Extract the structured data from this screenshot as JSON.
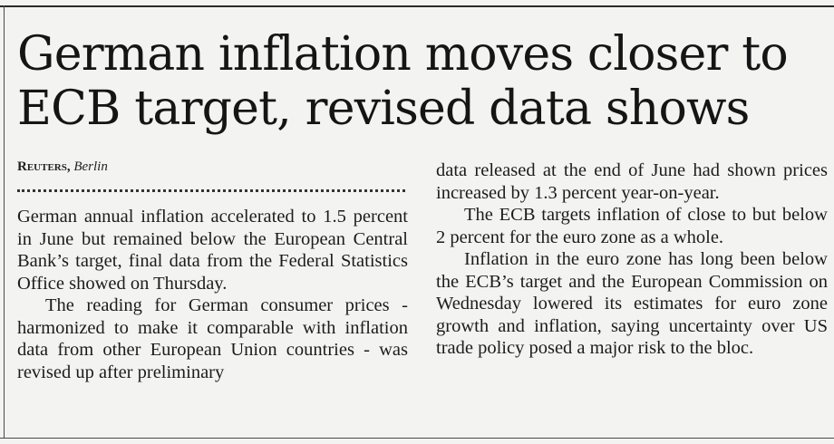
{
  "article": {
    "headline": "German inflation moves closer to ECB target, revised data shows",
    "byline": {
      "agency": "Reuters,",
      "location": "Berlin"
    },
    "left_column": [
      "German annual inflation accelerated to 1.5 percent in June but remained below the European Central Bank’s target, final data from the Federal Statistics Office showed on Thursday.",
      "The reading for German consumer prices - harmonized to make it comparable with inflation data from other European Union countries - was revised up after preliminary"
    ],
    "right_column": [
      "data released at the end of June had shown prices increased by 1.3 percent year-on-year.",
      "The ECB targets inflation of close to but below 2 percent for the euro zone as a whole.",
      "Inflation in the euro zone has long been below the ECB’s target and the European Commission on Wednesday lowered its estimates for euro zone growth and inflation, saying uncertainty over US trade policy posed a major risk to the bloc."
    ]
  }
}
